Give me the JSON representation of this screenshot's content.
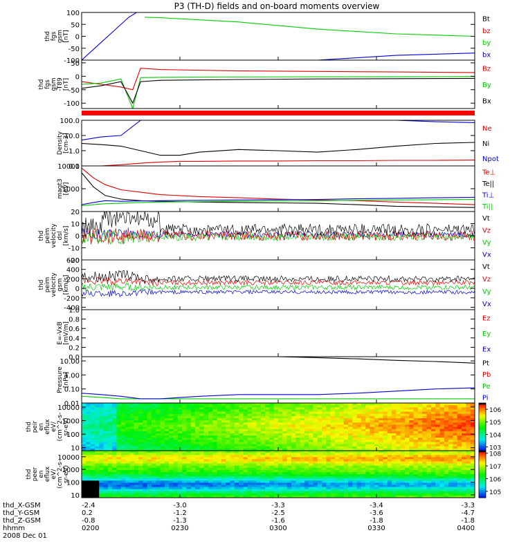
{
  "title": "P3 (TH-D) fields and on-board moments overview",
  "date": "2008 Dec 01",
  "colors": {
    "black": "#000000",
    "red": "#dd0000",
    "green": "#00cc00",
    "blue": "#0000cc",
    "flag": "#ff0000"
  },
  "time_axis": {
    "ticks": [
      "0200",
      "0230",
      "0300",
      "0330",
      "0400"
    ],
    "rows": [
      {
        "label": "thd_X-GSM",
        "values": [
          "-2.4",
          "-3.0",
          "-3.3",
          "-3.4",
          "-3.3"
        ]
      },
      {
        "label": "thd_Y-GSM",
        "values": [
          "0.2",
          "-1.2",
          "-2.5",
          "-3.6",
          "-4.7"
        ]
      },
      {
        "label": "thd_Z-GSM",
        "values": [
          "-0.8",
          "-1.3",
          "-1.6",
          "-1.8",
          "-1.8"
        ]
      },
      {
        "label": "hhmm",
        "values": [
          "0200",
          "0230",
          "0300",
          "0330",
          "0400"
        ]
      }
    ]
  },
  "chart_data": [
    {
      "type": "line",
      "ylabel": [
        "thd",
        "fgs",
        "gsm",
        "[nT]"
      ],
      "ylim": [
        -100,
        100
      ],
      "yticks": [
        "100",
        "50",
        "0",
        "-50",
        "-100"
      ],
      "ytick_values": [
        100,
        50,
        0,
        -50,
        -100
      ],
      "x": [
        0,
        4,
        8,
        12,
        14,
        16,
        20,
        40,
        60,
        80,
        100
      ],
      "series": [
        {
          "name": "Bt",
          "color": "black",
          "values": [
            null,
            null,
            null,
            null,
            null,
            null,
            null,
            null,
            null,
            null,
            null
          ]
        },
        {
          "name": "bz",
          "color": "red",
          "values": [
            null,
            null,
            null,
            null,
            null,
            null,
            null,
            null,
            null,
            null,
            null
          ]
        },
        {
          "name": "by",
          "color": "green",
          "values": [
            null,
            null,
            null,
            null,
            null,
            80,
            78,
            60,
            30,
            10,
            0
          ]
        },
        {
          "name": "bx",
          "color": "blue",
          "values": [
            -100,
            -40,
            20,
            80,
            100,
            null,
            null,
            null,
            -100,
            -80,
            -70
          ]
        }
      ]
    },
    {
      "type": "line",
      "ylabel": [
        "thd",
        "fgs",
        "gsm",
        "-T89",
        "[nT]"
      ],
      "ylim": [
        -120,
        60
      ],
      "yticks": [
        "50",
        "0",
        "-50",
        "-100"
      ],
      "ytick_values": [
        50,
        0,
        -50,
        -100
      ],
      "x": [
        0,
        5,
        10,
        13,
        15,
        20,
        40,
        60,
        80,
        100
      ],
      "series": [
        {
          "name": "Bz",
          "color": "red",
          "values": [
            -20,
            -30,
            -40,
            -50,
            30,
            25,
            20,
            18,
            16,
            14
          ]
        },
        {
          "name": "By",
          "color": "green",
          "values": [
            -30,
            -25,
            -10,
            -120,
            -5,
            -4,
            -3,
            -2,
            -2,
            -1
          ]
        },
        {
          "name": "Bx",
          "color": "black",
          "values": [
            -45,
            -35,
            -20,
            -100,
            -20,
            -15,
            -12,
            -10,
            -9,
            -8
          ]
        }
      ]
    },
    {
      "type": "log-line",
      "ylabel": [
        "Density",
        "[cm-3]"
      ],
      "ylim": [
        0.1,
        100
      ],
      "yticks": [
        "100.0",
        "10.0",
        "1.0",
        "0.1"
      ],
      "ytick_values": [
        100,
        10,
        1,
        0.1
      ],
      "x": [
        0,
        5,
        10,
        15,
        20,
        25,
        30,
        40,
        50,
        60,
        70,
        80,
        90,
        100
      ],
      "series": [
        {
          "name": "Ne",
          "color": "red",
          "values": [
            0.1,
            0.1,
            0.12,
            0.15,
            0.18,
            0.2,
            0.2,
            0.21,
            0.21,
            0.22,
            0.22,
            0.23,
            0.23,
            0.24
          ]
        },
        {
          "name": "Ni",
          "color": "black",
          "values": [
            3,
            2.5,
            2,
            1,
            0.5,
            0.5,
            0.8,
            1.2,
            1,
            0.8,
            1.2,
            2,
            3,
            3.5
          ]
        },
        {
          "name": "Npot",
          "color": "blue",
          "values": [
            5,
            8,
            10,
            100,
            null,
            null,
            null,
            null,
            null,
            null,
            null,
            100,
            80,
            70
          ]
        }
      ]
    },
    {
      "type": "log-line",
      "ylabel": [
        "magt3",
        "[eV]"
      ],
      "ylim": [
        100,
        10000
      ],
      "yticks": [
        "10000",
        "1000"
      ],
      "ytick_values": [
        10000,
        1000
      ],
      "x": [
        0,
        3,
        6,
        10,
        15,
        20,
        30,
        40,
        50,
        60,
        70,
        80,
        90,
        100
      ],
      "series": [
        {
          "name": "Te⊥",
          "color": "red",
          "values": [
            8000,
            3000,
            1500,
            900,
            700,
            550,
            450,
            400,
            350,
            320,
            300,
            260,
            230,
            200
          ]
        },
        {
          "name": "Te||",
          "color": "black",
          "values": [
            5000,
            1200,
            500,
            350,
            300,
            280,
            260,
            250,
            240,
            230,
            200,
            170,
            160,
            150
          ]
        },
        {
          "name": "Ti⊥",
          "color": "blue",
          "values": [
            200,
            250,
            300,
            280,
            290,
            300,
            310,
            320,
            330,
            340,
            360,
            380,
            400,
            420
          ]
        },
        {
          "name": "Ti||",
          "color": "green",
          "values": [
            180,
            200,
            220,
            230,
            250,
            260,
            270,
            280,
            290,
            300,
            310,
            320,
            330,
            340
          ]
        }
      ]
    },
    {
      "type": "noise-line",
      "ylabel": [
        "thd",
        "peim",
        "velocity",
        "dsl",
        "[km/s]"
      ],
      "ylim": [
        -20,
        20
      ],
      "yticks": [
        "20",
        "10",
        "0",
        "-10",
        "-20"
      ],
      "ytick_values": [
        20,
        10,
        0,
        -10,
        -20
      ],
      "series": [
        {
          "name": "Vt",
          "color": "black",
          "base": 5,
          "amp": 6
        },
        {
          "name": "Vz",
          "color": "red",
          "base": 0,
          "amp": 5
        },
        {
          "name": "Vy",
          "color": "green",
          "base": -1,
          "amp": 4
        },
        {
          "name": "Vx",
          "color": "blue",
          "base": 1,
          "amp": 3
        }
      ]
    },
    {
      "type": "noise-line",
      "ylabel": [
        "thd",
        "peim",
        "velocity",
        "gsm",
        "[km/s]"
      ],
      "ylim": [
        -450,
        600
      ],
      "yticks": [
        "600",
        "400",
        "200",
        "0",
        "-200",
        "-400"
      ],
      "ytick_values": [
        600,
        400,
        200,
        0,
        -200,
        -400
      ],
      "series": [
        {
          "name": "Vt",
          "color": "black",
          "base": 200,
          "amp": 80
        },
        {
          "name": "Vz",
          "color": "red",
          "base": 120,
          "amp": 60
        },
        {
          "name": "Vy",
          "color": "green",
          "base": 20,
          "amp": 60
        },
        {
          "name": "Vx",
          "color": "blue",
          "base": -80,
          "amp": 50
        }
      ]
    },
    {
      "type": "line",
      "ylabel": [
        "E=-VxB",
        "[mV/m]"
      ],
      "ylim": [
        0,
        1
      ],
      "yticks": [
        "1.0",
        "0.8",
        "0.6",
        "0.4",
        "0.2",
        "0.0"
      ],
      "ytick_values": [
        1,
        0.8,
        0.6,
        0.4,
        0.2,
        0
      ],
      "x": [
        0,
        100
      ],
      "series": [
        {
          "name": "Ez",
          "color": "red",
          "values": [
            null,
            null
          ]
        },
        {
          "name": "Ey",
          "color": "green",
          "values": [
            null,
            null
          ]
        },
        {
          "name": "Ex",
          "color": "blue",
          "values": [
            null,
            null
          ]
        }
      ]
    },
    {
      "type": "log-line",
      "ylabel": [
        "Pressure",
        "[nPa]"
      ],
      "ylim": [
        0.01,
        20
      ],
      "yticks": [
        "10.00",
        "1.00",
        "0.10",
        "0.01"
      ],
      "ytick_values": [
        10,
        1,
        0.1,
        0.01
      ],
      "x": [
        0,
        5,
        10,
        15,
        20,
        30,
        40,
        50,
        60,
        70,
        80,
        90,
        100
      ],
      "series": [
        {
          "name": "Pt",
          "color": "black",
          "values": [
            null,
            null,
            null,
            null,
            null,
            null,
            null,
            20,
            17,
            14,
            11,
            9,
            7
          ]
        },
        {
          "name": "Pb",
          "color": "red",
          "values": [
            null,
            null,
            null,
            null,
            null,
            null,
            null,
            null,
            null,
            null,
            null,
            null,
            null
          ]
        },
        {
          "name": "Pe",
          "color": "green",
          "values": [
            0.03,
            0.025,
            0.02,
            0.02,
            0.02,
            0.02,
            0.02,
            0.02,
            0.02,
            0.02,
            0.02,
            0.02,
            0.02
          ]
        },
        {
          "name": "Pi",
          "color": "blue",
          "values": [
            0.05,
            0.04,
            0.03,
            0.02,
            0.02,
            0.03,
            0.04,
            0.04,
            0.04,
            0.05,
            0.07,
            0.1,
            0.12
          ]
        }
      ]
    },
    {
      "type": "heatmap",
      "ylabel": [
        "thd",
        "peir",
        "en",
        "eflux",
        "eV/",
        "(cm^2-s-",
        "sr-eV)"
      ],
      "yticks": [
        "10000",
        "1000",
        "100",
        "10"
      ],
      "ytick_values": [
        10000,
        1000,
        100,
        10
      ],
      "ylim": [
        6,
        20000
      ],
      "colorbar": {
        "labels": [
          "10^6",
          "10^5",
          "10^4",
          "10^3"
        ],
        "label_values": [
          6,
          5,
          4,
          3
        ],
        "range": [
          2.7,
          6.5
        ]
      }
    },
    {
      "type": "heatmap",
      "ylabel": [
        "thd",
        "peer",
        "en",
        "eflux",
        "eV/",
        "(cm^2-s-",
        "sr-eV)"
      ],
      "yticks": [
        "10000",
        "1000",
        "100",
        "10"
      ],
      "ytick_values": [
        10000,
        1000,
        100,
        10
      ],
      "ylim": [
        6,
        30000
      ],
      "colorbar": {
        "labels": [
          "10^8",
          "10^7",
          "10^6",
          "10^5"
        ],
        "label_values": [
          8,
          7,
          6,
          5
        ],
        "range": [
          4.5,
          8.2
        ]
      }
    }
  ]
}
